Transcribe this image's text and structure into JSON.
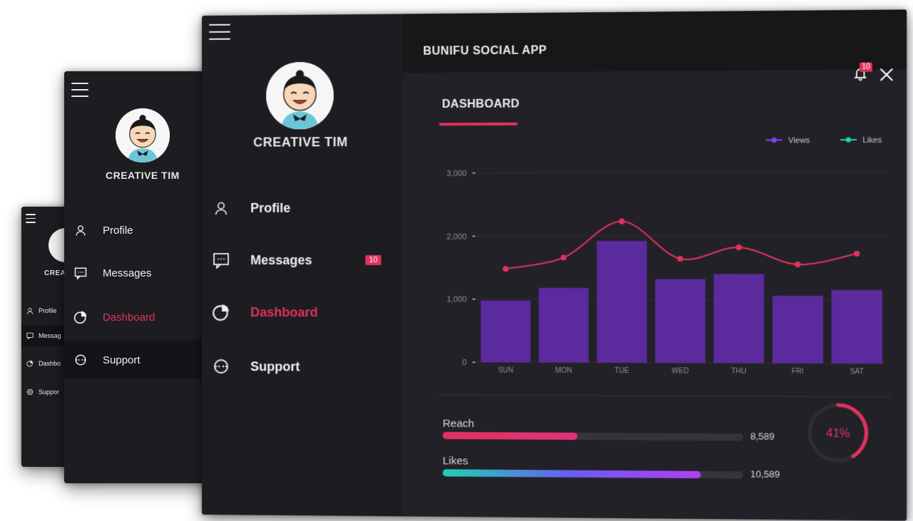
{
  "user": {
    "name": "CREATIVE TIM",
    "name_short": "CREAT"
  },
  "nav": {
    "items": [
      {
        "label": "Profile",
        "icon": "person-icon"
      },
      {
        "label": "Messages",
        "icon": "chat-icon",
        "badge": "10"
      },
      {
        "label": "Dashboard",
        "icon": "pie-chart-icon",
        "active": true
      },
      {
        "label": "Support",
        "icon": "support-icon"
      }
    ],
    "back_labels": [
      "Profile",
      "Messag",
      "Dashbo",
      "Suppor"
    ]
  },
  "header": {
    "app_title": "BUNIFU SOCIAL APP",
    "notification_count": "10"
  },
  "dashboard": {
    "tab_label": "DASHBOARD"
  },
  "chart_data": {
    "type": "bar",
    "categories": [
      "SUN",
      "MON",
      "TUE",
      "WED",
      "THU",
      "FRI",
      "SAT"
    ],
    "series": [
      {
        "name": "Views",
        "type": "bar",
        "color": "#5b2a9c",
        "values": [
          980,
          1180,
          1920,
          1320,
          1400,
          1060,
          1150
        ]
      },
      {
        "name": "Likes",
        "type": "line",
        "color": "#e0325d",
        "values": [
          1480,
          1660,
          2230,
          1640,
          1820,
          1550,
          1720
        ]
      }
    ],
    "legend": [
      {
        "name": "Views",
        "color": "#8a3cf0"
      },
      {
        "name": "Likes",
        "color": "#1fd2b4"
      }
    ],
    "yticks": [
      "3,000",
      "2,000",
      "1,000",
      "0"
    ],
    "ylim": [
      0,
      3000
    ],
    "grid": true,
    "legend_position": "top-right"
  },
  "stats": {
    "reach": {
      "label": "Reach",
      "value": "8,589",
      "fraction": 0.45
    },
    "likes": {
      "label": "Likes",
      "value": "10,589",
      "fraction": 0.86
    },
    "ring": {
      "label": "41%",
      "fraction": 0.41
    }
  },
  "colors": {
    "accent": "#e0325d",
    "bar": "#5b2a9c",
    "teal": "#1fd2b4"
  }
}
